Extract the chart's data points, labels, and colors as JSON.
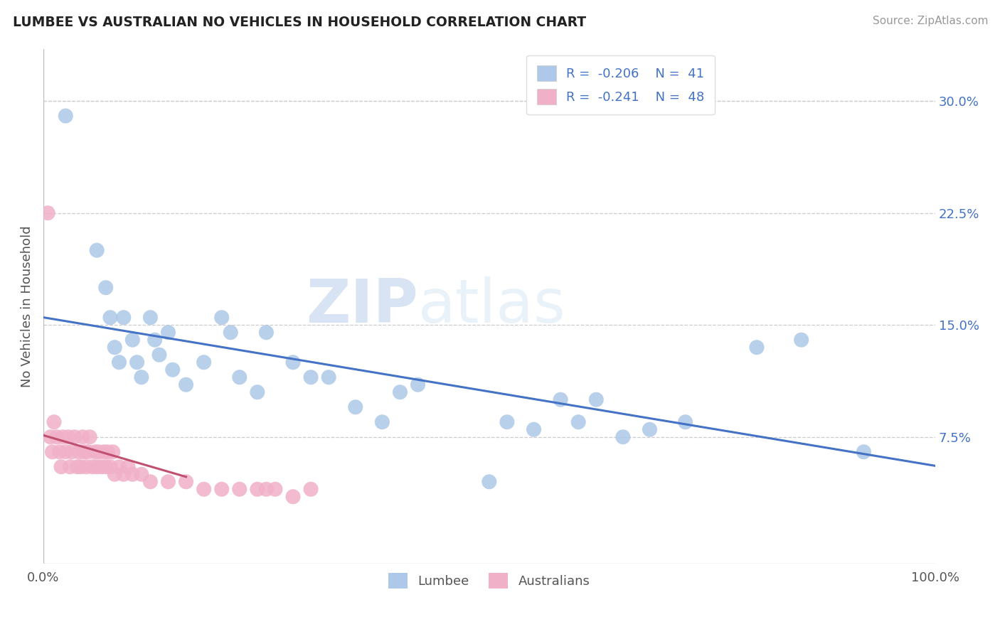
{
  "title": "LUMBEE VS AUSTRALIAN NO VEHICLES IN HOUSEHOLD CORRELATION CHART",
  "source": "Source: ZipAtlas.com",
  "ylabel": "No Vehicles in Household",
  "xlim": [
    0.0,
    1.0
  ],
  "ylim": [
    -0.01,
    0.335
  ],
  "yticks_right": [
    0.075,
    0.15,
    0.225,
    0.3
  ],
  "ytick_labels_right": [
    "7.5%",
    "15.0%",
    "22.5%",
    "30.0%"
  ],
  "lumbee_R": -0.206,
  "lumbee_N": 41,
  "australian_R": -0.241,
  "australian_N": 48,
  "lumbee_dot_color": "#adc8e8",
  "australian_dot_color": "#f0b0c8",
  "lumbee_line_color": "#4472c4",
  "australian_line_color": "#c05070",
  "legend_text_color": "#4472c4",
  "lumbee_x": [
    0.025,
    0.06,
    0.07,
    0.075,
    0.08,
    0.085,
    0.09,
    0.1,
    0.105,
    0.11,
    0.12,
    0.125,
    0.13,
    0.14,
    0.145,
    0.16,
    0.18,
    0.2,
    0.21,
    0.22,
    0.24,
    0.25,
    0.28,
    0.3,
    0.32,
    0.35,
    0.38,
    0.4,
    0.42,
    0.5,
    0.52,
    0.55,
    0.58,
    0.6,
    0.62,
    0.65,
    0.68,
    0.72,
    0.8,
    0.85,
    0.92
  ],
  "lumbee_y": [
    0.29,
    0.2,
    0.175,
    0.155,
    0.135,
    0.125,
    0.155,
    0.14,
    0.125,
    0.115,
    0.155,
    0.14,
    0.13,
    0.145,
    0.12,
    0.11,
    0.125,
    0.155,
    0.145,
    0.115,
    0.105,
    0.145,
    0.125,
    0.115,
    0.115,
    0.095,
    0.085,
    0.105,
    0.11,
    0.045,
    0.085,
    0.08,
    0.1,
    0.085,
    0.1,
    0.075,
    0.08,
    0.085,
    0.135,
    0.14,
    0.065
  ],
  "australian_x": [
    0.005,
    0.008,
    0.01,
    0.012,
    0.015,
    0.018,
    0.02,
    0.022,
    0.025,
    0.028,
    0.03,
    0.032,
    0.035,
    0.038,
    0.04,
    0.042,
    0.044,
    0.046,
    0.048,
    0.05,
    0.052,
    0.055,
    0.058,
    0.06,
    0.062,
    0.065,
    0.068,
    0.07,
    0.072,
    0.075,
    0.078,
    0.08,
    0.085,
    0.09,
    0.095,
    0.1,
    0.11,
    0.12,
    0.14,
    0.16,
    0.18,
    0.2,
    0.22,
    0.24,
    0.25,
    0.26,
    0.28,
    0.3
  ],
  "australian_y": [
    0.225,
    0.075,
    0.065,
    0.085,
    0.075,
    0.065,
    0.055,
    0.075,
    0.065,
    0.075,
    0.055,
    0.065,
    0.075,
    0.055,
    0.065,
    0.055,
    0.075,
    0.065,
    0.055,
    0.065,
    0.075,
    0.055,
    0.065,
    0.055,
    0.065,
    0.055,
    0.065,
    0.055,
    0.065,
    0.055,
    0.065,
    0.05,
    0.055,
    0.05,
    0.055,
    0.05,
    0.05,
    0.045,
    0.045,
    0.045,
    0.04,
    0.04,
    0.04,
    0.04,
    0.04,
    0.04,
    0.035,
    0.04
  ]
}
